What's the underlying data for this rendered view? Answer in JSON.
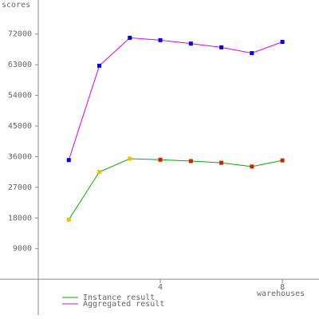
{
  "chart_data": {
    "type": "line",
    "x_label": "warehouses",
    "y_label": "scores",
    "x": [
      1,
      2,
      3,
      4,
      5,
      6,
      7,
      8
    ],
    "series": [
      {
        "name": "Instance result",
        "color": "#00b000",
        "marker_colors": [
          "#f0c000",
          "#f0c000",
          "#f0c000",
          "#d02000",
          "#d02000",
          "#d02000",
          "#d02000",
          "#d02000"
        ],
        "values": [
          17500,
          31500,
          35400,
          35100,
          34700,
          34200,
          33100,
          34900
        ]
      },
      {
        "name": "Aggregated result",
        "color": "#e000e0",
        "marker_colors": [
          "#0000e0",
          "#0000e0",
          "#0000e0",
          "#0000e0",
          "#0000e0",
          "#0000e0",
          "#0000e0",
          "#0000e0"
        ],
        "values": [
          35000,
          62700,
          70900,
          70200,
          69200,
          68100,
          66400,
          69700
        ]
      }
    ],
    "xlim": [
      0,
      9.2
    ],
    "xticks": [
      4,
      8
    ],
    "ylim": [
      -10500,
      82000
    ],
    "yticks": [
      9000,
      18000,
      27000,
      36000,
      45000,
      54000,
      63000,
      72000
    ]
  }
}
